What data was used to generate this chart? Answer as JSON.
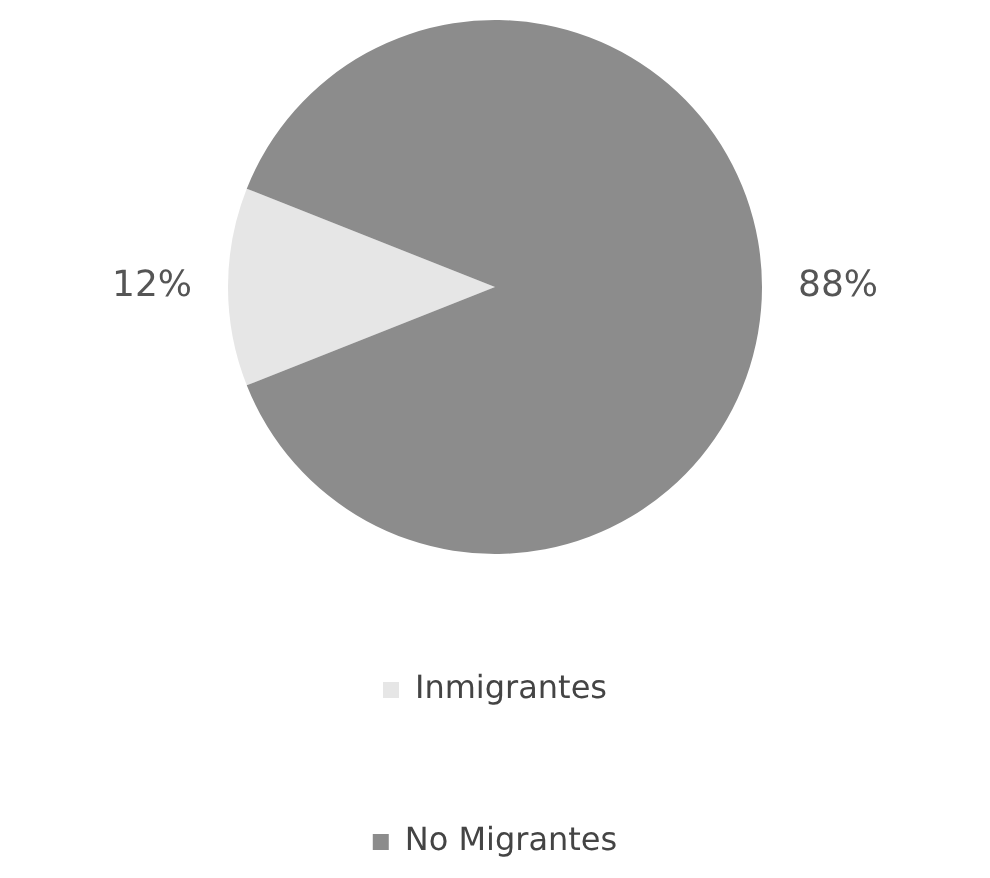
{
  "chart_data": {
    "type": "pie",
    "categories": [
      "Inmigrantes",
      "No Migrantes"
    ],
    "values": [
      12,
      88
    ],
    "colors": [
      "#e6e6e6",
      "#8c8c8c"
    ],
    "value_labels": [
      "12%",
      "88%"
    ],
    "legend": "bottom"
  }
}
